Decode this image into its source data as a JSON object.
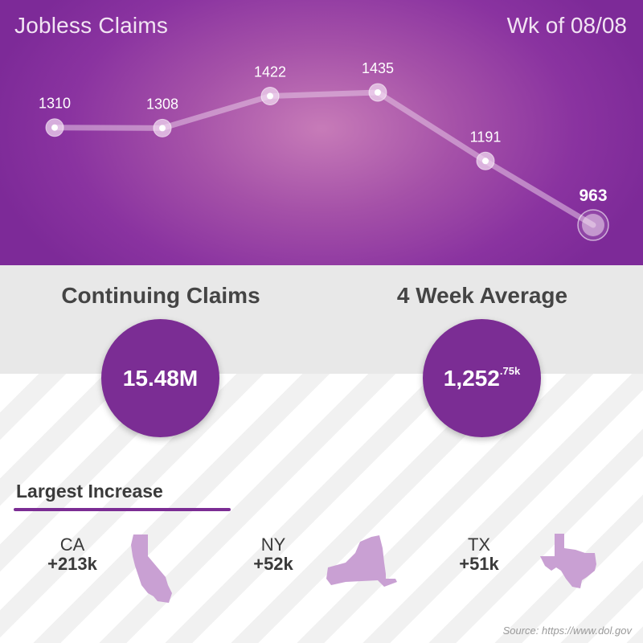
{
  "header": {
    "title": "Jobless Claims",
    "week": "Wk of 08/08"
  },
  "chart_data": {
    "type": "line",
    "title": "Jobless Claims",
    "xlabel": "",
    "ylabel": "",
    "values": [
      1310,
      1308,
      1422,
      1435,
      1191,
      963
    ],
    "labels": [
      "1310",
      "1308",
      "1422",
      "1435",
      "1191",
      "963"
    ],
    "highlight_last": true,
    "ylim": [
      900,
      1500
    ],
    "grid": false
  },
  "stats": {
    "continuing": {
      "title": "Continuing Claims",
      "value": "15.48M"
    },
    "average": {
      "title": "4 Week Average",
      "value_main": "1,252",
      "value_sup": ".75k"
    }
  },
  "increase": {
    "title": "Largest Increase",
    "states": [
      {
        "code": "CA",
        "amount": "+213k"
      },
      {
        "code": "NY",
        "amount": "+52k"
      },
      {
        "code": "TX",
        "amount": "+51k"
      }
    ]
  },
  "footer": {
    "source": "Source: https://www.dol.gov"
  },
  "colors": {
    "accent": "#7b2d94",
    "state_fill": "#c9a0d3",
    "line": "#e6c7e6"
  }
}
